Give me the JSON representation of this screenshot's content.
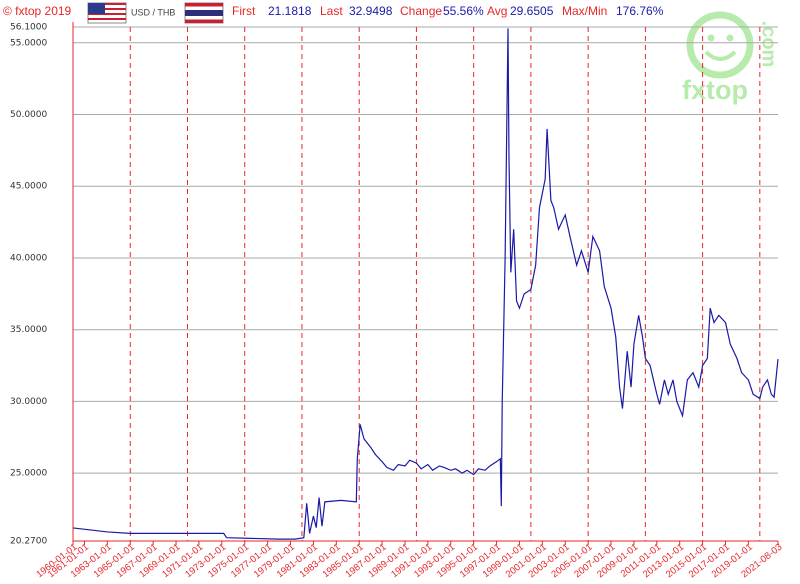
{
  "header": {
    "copyright": "© fxtop 2019",
    "pair": "USD / THB",
    "stats": [
      {
        "label": "First",
        "value": "21.1818"
      },
      {
        "label": "Last",
        "value": "32.9498"
      },
      {
        "label": "Change",
        "value": "55.56%"
      },
      {
        "label": "Avg",
        "value": "29.6505"
      },
      {
        "label": "Max/Min",
        "value": "176.76%"
      }
    ]
  },
  "logo": {
    "name": "fxtop",
    "suffix": ".com"
  },
  "chart_data": {
    "type": "line",
    "color": "#1a1aa6",
    "x": [
      "1960-01-01",
      "1961-06-01",
      "1963-01-01",
      "1965-01-01",
      "1970-01-01",
      "1973-03-01",
      "1973-06-01",
      "1978-01-01",
      "1979-06-01",
      "1980-03-01",
      "1980-06-01",
      "1980-09-01",
      "1981-01-01",
      "1981-04-01",
      "1981-07-01",
      "1981-10-01",
      "1982-01-01",
      "1983-06-01",
      "1984-10-01",
      "1984-11-01",
      "1985-02-01",
      "1985-06-01",
      "1986-01-01",
      "1986-06-01",
      "1987-01-01",
      "1987-06-01",
      "1988-01-01",
      "1988-06-01",
      "1989-01-01",
      "1989-06-01",
      "1990-01-01",
      "1990-06-01",
      "1991-01-01",
      "1991-06-01",
      "1992-01-01",
      "1992-06-01",
      "1993-01-01",
      "1993-06-01",
      "1994-01-01",
      "1994-06-01",
      "1995-01-01",
      "1995-06-01",
      "1996-01-01",
      "1996-06-01",
      "1997-01-01",
      "1997-05-01",
      "1997-06-01",
      "1997-07-01",
      "1997-10-01",
      "1998-01-01",
      "1998-02-01",
      "1998-04-01",
      "1998-07-01",
      "1998-10-01",
      "1999-01-01",
      "1999-06-01",
      "2000-01-01",
      "2000-06-01",
      "2000-10-01",
      "2001-04-01",
      "2001-06-01",
      "2001-10-01",
      "2002-01-01",
      "2002-06-01",
      "2003-01-01",
      "2003-06-01",
      "2004-01-01",
      "2004-06-01",
      "2005-01-01",
      "2005-06-01",
      "2006-01-01",
      "2006-06-01",
      "2007-01-01",
      "2007-06-01",
      "2007-10-01",
      "2008-01-01",
      "2008-06-01",
      "2008-10-01",
      "2009-01-01",
      "2009-06-01",
      "2009-10-01",
      "2010-01-01",
      "2010-06-01",
      "2011-01-01",
      "2011-04-01",
      "2011-09-01",
      "2012-01-01",
      "2012-06-01",
      "2012-10-01",
      "2013-04-01",
      "2013-09-01",
      "2014-03-01",
      "2014-09-01",
      "2015-01-01",
      "2015-06-01",
      "2015-09-01",
      "2016-01-01",
      "2016-06-01",
      "2017-01-01",
      "2017-06-01",
      "2018-01-01",
      "2018-06-01",
      "2019-01-01",
      "2019-06-01",
      "2020-01-01",
      "2020-04-01",
      "2020-09-01",
      "2021-01-01",
      "2021-04-01",
      "2021-08-03"
    ],
    "values": [
      21.18,
      21.05,
      20.9,
      20.8,
      20.8,
      20.8,
      20.5,
      20.4,
      20.4,
      20.5,
      22.9,
      20.8,
      22.0,
      21.2,
      23.3,
      21.3,
      23.0,
      23.1,
      23.0,
      26.0,
      28.4,
      27.4,
      26.8,
      26.3,
      25.8,
      25.4,
      25.2,
      25.6,
      25.5,
      25.9,
      25.7,
      25.3,
      25.6,
      25.2,
      25.5,
      25.4,
      25.2,
      25.3,
      25.0,
      25.2,
      24.9,
      25.3,
      25.2,
      25.5,
      25.8,
      26.0,
      22.7,
      30,
      40,
      56.0,
      47,
      39,
      42,
      37,
      36.5,
      37.5,
      37.8,
      39.5,
      43.5,
      45.5,
      49.0,
      44,
      43.5,
      42,
      43,
      41.5,
      39.5,
      40.5,
      39,
      41.5,
      40.5,
      38,
      36.5,
      34.5,
      31,
      29.5,
      33.5,
      31,
      34,
      36,
      34.5,
      33,
      32.5,
      30.5,
      29.8,
      31.5,
      30.5,
      31.5,
      30,
      29.0,
      31.5,
      32.0,
      31.0,
      32.5,
      33.0,
      36.5,
      35.5,
      36,
      35.5,
      34,
      33,
      32,
      31.5,
      30.5,
      30.2,
      31.0,
      31.5,
      30.5,
      30.3,
      32.95
    ],
    "xlim": [
      "1960-01-01",
      "2021-08-03"
    ],
    "xticks": [
      "1960-01-01",
      "1961-01-01",
      "1963-01-01",
      "1965-01-01",
      "1967-01-01",
      "1969-01-01",
      "1971-01-01",
      "1973-01-01",
      "1975-01-01",
      "1977-01-01",
      "1979-01-01",
      "1981-01-01",
      "1983-01-01",
      "1985-01-01",
      "1987-01-01",
      "1989-01-01",
      "1991-01-01",
      "1993-01-01",
      "1995-01-01",
      "1997-01-01",
      "1999-01-01",
      "2001-01-01",
      "2003-01-01",
      "2005-01-01",
      "2007-01-01",
      "2009-01-01",
      "2011-01-01",
      "2013-01-01",
      "2015-01-01",
      "2017-01-01",
      "2019-01-01",
      "2021-08-03"
    ],
    "xgrid": [
      "1965-01-01",
      "1970-01-01",
      "1975-01-01",
      "1980-01-01",
      "1985-01-01",
      "1990-01-01",
      "1995-01-01",
      "2000-01-01",
      "2005-01-01",
      "2010-01-01",
      "2015-01-01",
      "2020-01-01"
    ],
    "ylim": [
      20.27,
      56.1
    ],
    "yticks": [
      {
        "value": 20.27,
        "label": "20.2700"
      },
      {
        "value": 25,
        "label": "25.0000"
      },
      {
        "value": 30,
        "label": "30.0000"
      },
      {
        "value": 35,
        "label": "35.0000"
      },
      {
        "value": 40,
        "label": "40.0000"
      },
      {
        "value": 45,
        "label": "45.0000"
      },
      {
        "value": 50,
        "label": "50.0000"
      },
      {
        "value": 55,
        "label": "55.0000"
      },
      {
        "value": 56.1,
        "label": "56.1000"
      }
    ],
    "grid": true
  }
}
